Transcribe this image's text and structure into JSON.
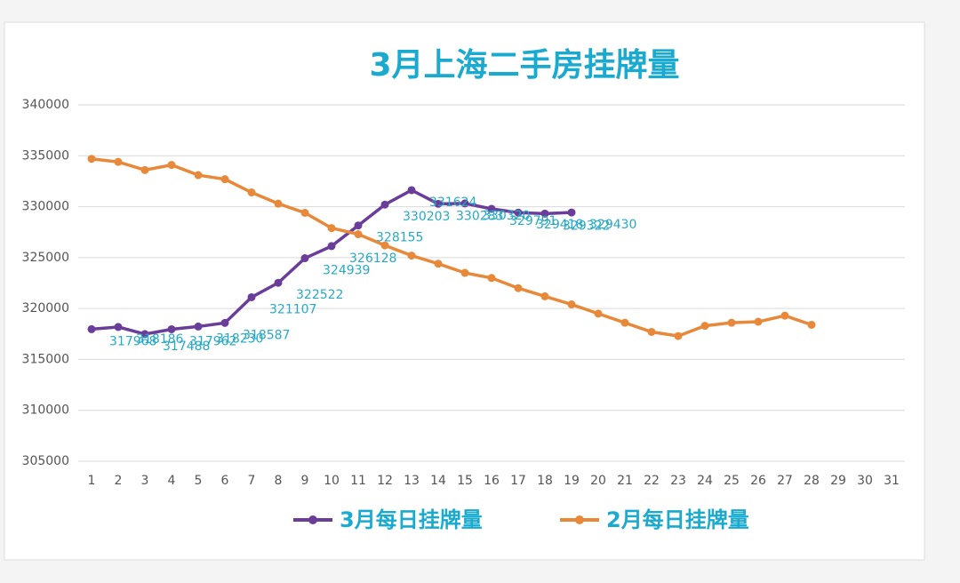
{
  "chart_data": {
    "type": "line",
    "title": "3月上海二手房挂牌量",
    "categories": [
      "1",
      "2",
      "3",
      "4",
      "5",
      "6",
      "7",
      "8",
      "9",
      "10",
      "11",
      "12",
      "13",
      "14",
      "15",
      "16",
      "17",
      "18",
      "19",
      "20",
      "21",
      "22",
      "23",
      "24",
      "25",
      "26",
      "27",
      "28",
      "29",
      "30",
      "31"
    ],
    "series": [
      {
        "name": "3月每日挂牌量",
        "color": "#6a3d9a",
        "data_labels": true,
        "values": [
          317968,
          318186,
          317488,
          317962,
          318230,
          318587,
          321107,
          322522,
          324939,
          326128,
          328155,
          330203,
          331624,
          330283,
          330320,
          329791,
          329418,
          329322,
          329430,
          null,
          null,
          null,
          null,
          null,
          null,
          null,
          null,
          null,
          null,
          null,
          null
        ]
      },
      {
        "name": "2月每日挂牌量",
        "color": "#e8893a",
        "data_labels": false,
        "values": [
          334700,
          334400,
          333600,
          334100,
          333100,
          332700,
          331400,
          330300,
          329400,
          327900,
          327300,
          326200,
          325200,
          324400,
          323500,
          323000,
          322000,
          321200,
          320400,
          319500,
          318600,
          317700,
          317300,
          318300,
          318600,
          318700,
          319300,
          318400,
          null,
          null,
          null
        ]
      }
    ],
    "ylim": [
      305000,
      340000
    ],
    "yticks": [
      305000,
      310000,
      315000,
      320000,
      325000,
      330000,
      335000,
      340000
    ],
    "grid": true,
    "legend": "bottom"
  }
}
